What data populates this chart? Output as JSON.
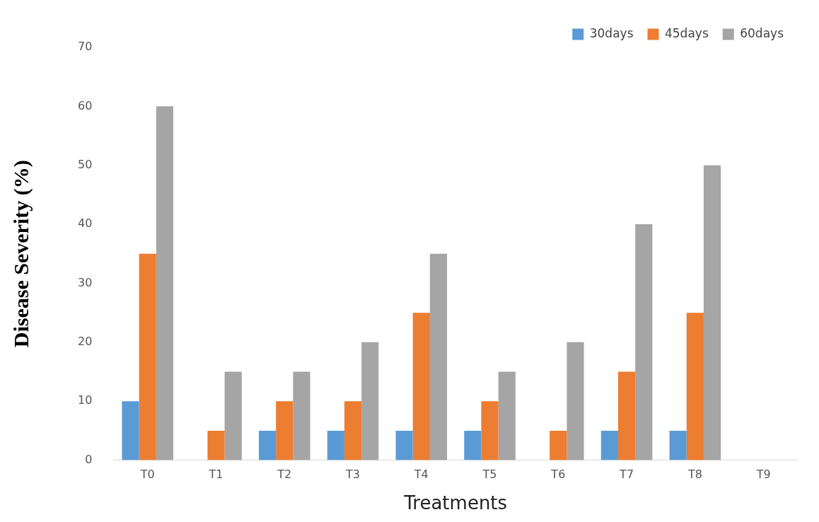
{
  "chart_data": {
    "type": "bar",
    "xlabel": "Treatments",
    "ylabel": "Disease Severity (%)",
    "categories": [
      "T0",
      "T1",
      "T2",
      "T3",
      "T4",
      "T5",
      "T6",
      "T7",
      "T8",
      "T9"
    ],
    "series": [
      {
        "name": "30days",
        "color": "#5b9bd5",
        "values": [
          10,
          0,
          5,
          5,
          5,
          5,
          0,
          5,
          5,
          0
        ]
      },
      {
        "name": "45days",
        "color": "#ed7d31",
        "values": [
          35,
          5,
          10,
          10,
          25,
          10,
          5,
          15,
          25,
          0
        ]
      },
      {
        "name": "60days",
        "color": "#a5a5a5",
        "values": [
          60,
          15,
          15,
          20,
          35,
          15,
          20,
          40,
          50,
          0
        ]
      }
    ],
    "ylim": [
      0,
      70
    ],
    "yticks": [
      0,
      10,
      20,
      30,
      40,
      50,
      60,
      70
    ],
    "grid": false,
    "legend": "top right"
  }
}
